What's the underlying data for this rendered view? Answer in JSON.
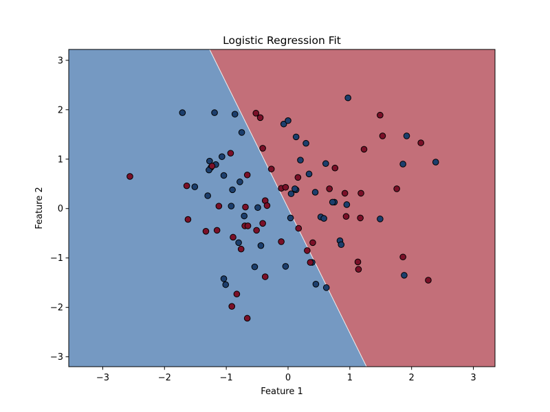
{
  "chart_data": {
    "type": "scatter",
    "title": "Logistic Regression Fit",
    "xlabel": "Feature 1",
    "ylabel": "Feature 2",
    "xlim": [
      -3.55,
      3.35
    ],
    "ylim": [
      -3.2,
      3.22
    ],
    "xticks": [
      -3,
      -2,
      -1,
      0,
      1,
      2,
      3
    ],
    "yticks": [
      -3,
      -2,
      -1,
      0,
      1,
      2,
      3
    ],
    "xtick_labels": [
      "−3",
      "−2",
      "−1",
      "0",
      "1",
      "2",
      "3"
    ],
    "ytick_labels": [
      "−3",
      "−2",
      "−1",
      "0",
      "1",
      "2",
      "3"
    ],
    "grid": false,
    "decision_boundary": {
      "points": [
        [
          -1.27,
          3.22
        ],
        [
          1.27,
          -3.2
        ]
      ]
    },
    "regions": {
      "left_color": "#7599c2",
      "right_color": "#c36f79"
    },
    "series": [
      {
        "color": "#1c3e6c",
        "points": [
          [
            -1.71,
            1.94
          ],
          [
            -1.19,
            1.94
          ],
          [
            -0.86,
            1.91
          ],
          [
            0.97,
            2.24
          ],
          [
            -0.75,
            1.54
          ],
          [
            -0.07,
            1.71
          ],
          [
            0.0,
            1.78
          ],
          [
            0.13,
            1.45
          ],
          [
            0.29,
            1.32
          ],
          [
            -1.07,
            1.05
          ],
          [
            -1.27,
            0.96
          ],
          [
            -1.17,
            0.89
          ],
          [
            -1.25,
            0.83
          ],
          [
            -1.28,
            0.78
          ],
          [
            -1.04,
            0.67
          ],
          [
            -0.78,
            0.54
          ],
          [
            -0.9,
            0.38
          ],
          [
            -1.51,
            0.44
          ],
          [
            -1.3,
            0.26
          ],
          [
            -0.92,
            0.05
          ],
          [
            -0.71,
            -0.15
          ],
          [
            -0.49,
            0.02
          ],
          [
            0.2,
            0.98
          ],
          [
            0.34,
            0.7
          ],
          [
            0.61,
            0.91
          ],
          [
            0.13,
            0.38
          ],
          [
            0.44,
            0.33
          ],
          [
            0.05,
            0.3
          ],
          [
            0.11,
            0.4
          ],
          [
            0.75,
            0.13
          ],
          [
            0.72,
            0.13
          ],
          [
            0.95,
            0.08
          ],
          [
            0.04,
            -0.19
          ],
          [
            0.53,
            -0.17
          ],
          [
            0.58,
            -0.2
          ],
          [
            1.49,
            -0.21
          ],
          [
            1.86,
            0.9
          ],
          [
            1.92,
            1.47
          ],
          [
            2.39,
            0.94
          ],
          [
            -0.8,
            -0.69
          ],
          [
            -0.44,
            -0.75
          ],
          [
            -0.54,
            -1.18
          ],
          [
            -0.04,
            -1.17
          ],
          [
            0.39,
            -1.09
          ],
          [
            0.84,
            -0.65
          ],
          [
            0.86,
            -0.73
          ],
          [
            0.45,
            -1.53
          ],
          [
            0.62,
            -1.6
          ],
          [
            1.88,
            -1.35
          ],
          [
            -1.04,
            -1.42
          ],
          [
            -1.01,
            -1.54
          ]
        ]
      },
      {
        "color": "#7a1028",
        "points": [
          [
            -2.56,
            0.65
          ],
          [
            -1.64,
            0.46
          ],
          [
            -1.62,
            -0.22
          ],
          [
            -1.33,
            -0.46
          ],
          [
            -1.15,
            -0.44
          ],
          [
            -1.12,
            0.05
          ],
          [
            -1.23,
            0.86
          ],
          [
            -0.93,
            1.12
          ],
          [
            -0.66,
            0.68
          ],
          [
            -0.52,
            1.93
          ],
          [
            -0.45,
            1.84
          ],
          [
            -0.41,
            1.22
          ],
          [
            -0.27,
            0.8
          ],
          [
            -0.11,
            0.41
          ],
          [
            -0.04,
            0.43
          ],
          [
            0.16,
            0.63
          ],
          [
            -0.37,
            0.16
          ],
          [
            -0.34,
            0.06
          ],
          [
            -0.69,
            0.03
          ],
          [
            -0.7,
            -0.35
          ],
          [
            -0.65,
            -0.35
          ],
          [
            -0.51,
            -0.44
          ],
          [
            -0.41,
            -0.3
          ],
          [
            -0.89,
            -0.58
          ],
          [
            -0.76,
            -0.82
          ],
          [
            -0.11,
            -0.67
          ],
          [
            0.17,
            -0.4
          ],
          [
            0.4,
            -0.69
          ],
          [
            0.31,
            -0.85
          ],
          [
            0.36,
            -1.09
          ],
          [
            -0.37,
            -1.38
          ],
          [
            -0.83,
            -1.73
          ],
          [
            -0.91,
            -1.98
          ],
          [
            -0.66,
            -2.22
          ],
          [
            0.67,
            0.4
          ],
          [
            0.76,
            0.82
          ],
          [
            0.92,
            0.31
          ],
          [
            0.94,
            -0.16
          ],
          [
            1.18,
            0.31
          ],
          [
            1.17,
            -0.19
          ],
          [
            1.23,
            1.2
          ],
          [
            1.49,
            1.89
          ],
          [
            1.53,
            1.47
          ],
          [
            1.76,
            0.4
          ],
          [
            2.15,
            1.33
          ],
          [
            1.86,
            -0.98
          ],
          [
            1.13,
            -1.08
          ],
          [
            1.14,
            -1.23
          ],
          [
            2.27,
            -1.45
          ]
        ]
      }
    ]
  }
}
